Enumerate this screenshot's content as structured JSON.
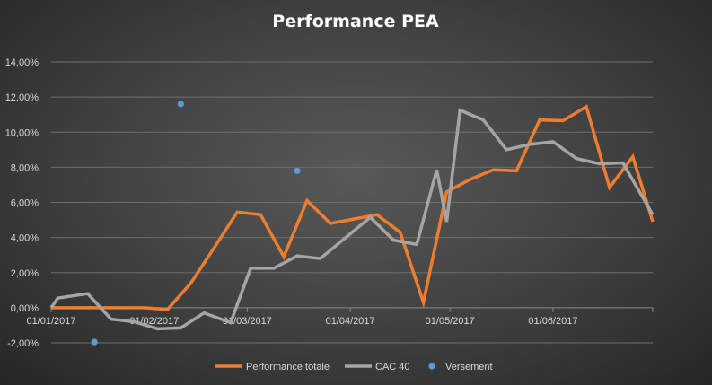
{
  "chart_data": {
    "type": "line",
    "title": "Performance  PEA",
    "xlabel": "",
    "ylabel": "",
    "x_axis_type": "date",
    "xlim": [
      "2017-01-01",
      "2017-07-01"
    ],
    "ylim": [
      -2,
      14
    ],
    "y_tick_values": [
      -2,
      0,
      2,
      4,
      6,
      8,
      10,
      12,
      14
    ],
    "y_tick_labels": [
      "-2,00%",
      "0,00%",
      "2,00%",
      "4,00%",
      "6,00%",
      "8,00%",
      "10,00%",
      "12,00%",
      "14,00%"
    ],
    "x_tick_values": [
      "2017-01-01",
      "2017-02-01",
      "2017-03-01",
      "2017-04-01",
      "2017-05-01",
      "2017-06-01"
    ],
    "x_tick_labels": [
      "01/01/2017",
      "01/02/2017",
      "01/03/2017",
      "01/04/2017",
      "01/05/2017",
      "01/06/2017"
    ],
    "grid": true,
    "legend_position": "bottom",
    "series": [
      {
        "name": "Performance totale",
        "kind": "line",
        "color": "#ed7d31",
        "points": [
          [
            "2017-01-01",
            0.0
          ],
          [
            "2017-01-08",
            0.0
          ],
          [
            "2017-01-15",
            0.0
          ],
          [
            "2017-01-22",
            0.0
          ],
          [
            "2017-01-29",
            0.0
          ],
          [
            "2017-02-05",
            -0.1
          ],
          [
            "2017-02-12",
            1.4
          ],
          [
            "2017-02-19",
            3.4
          ],
          [
            "2017-02-26",
            5.45
          ],
          [
            "2017-03-05",
            5.3
          ],
          [
            "2017-03-12",
            2.9
          ],
          [
            "2017-03-19",
            6.1
          ],
          [
            "2017-03-26",
            4.8
          ],
          [
            "2017-04-02",
            5.05
          ],
          [
            "2017-04-09",
            5.3
          ],
          [
            "2017-04-16",
            4.3
          ],
          [
            "2017-04-23",
            0.3
          ],
          [
            "2017-04-30",
            6.6
          ],
          [
            "2017-05-07",
            7.3
          ],
          [
            "2017-05-14",
            7.85
          ],
          [
            "2017-05-21",
            7.8
          ],
          [
            "2017-05-28",
            10.7
          ],
          [
            "2017-06-04",
            10.65
          ],
          [
            "2017-06-11",
            11.45
          ],
          [
            "2017-06-18",
            6.85
          ],
          [
            "2017-06-25",
            8.6
          ],
          [
            "2017-07-01",
            4.9
          ]
        ]
      },
      {
        "name": "CAC 40",
        "kind": "line",
        "color": "#a5a5a5",
        "points": [
          [
            "2017-01-01",
            0.0
          ],
          [
            "2017-01-03",
            0.55
          ],
          [
            "2017-01-12",
            0.8
          ],
          [
            "2017-01-19",
            -0.65
          ],
          [
            "2017-01-26",
            -0.8
          ],
          [
            "2017-02-02",
            -1.2
          ],
          [
            "2017-02-09",
            -1.15
          ],
          [
            "2017-02-16",
            -0.3
          ],
          [
            "2017-02-24",
            -0.85
          ],
          [
            "2017-03-02",
            2.25
          ],
          [
            "2017-03-09",
            2.25
          ],
          [
            "2017-03-16",
            2.95
          ],
          [
            "2017-03-23",
            2.8
          ],
          [
            "2017-04-07",
            5.15
          ],
          [
            "2017-04-14",
            3.85
          ],
          [
            "2017-04-21",
            3.6
          ],
          [
            "2017-04-27",
            7.85
          ],
          [
            "2017-04-30",
            4.9
          ],
          [
            "2017-05-04",
            11.25
          ],
          [
            "2017-05-11",
            10.7
          ],
          [
            "2017-05-18",
            9.0
          ],
          [
            "2017-05-25",
            9.3
          ],
          [
            "2017-06-01",
            9.45
          ],
          [
            "2017-06-08",
            8.5
          ],
          [
            "2017-06-15",
            8.2
          ],
          [
            "2017-06-22",
            8.25
          ],
          [
            "2017-07-01",
            5.3
          ]
        ]
      },
      {
        "name": "Versement",
        "kind": "scatter",
        "color": "#5b9bd5",
        "points": [
          [
            "2017-01-14",
            -1.95
          ],
          [
            "2017-02-09",
            11.6
          ],
          [
            "2017-03-16",
            7.8
          ]
        ]
      }
    ]
  }
}
